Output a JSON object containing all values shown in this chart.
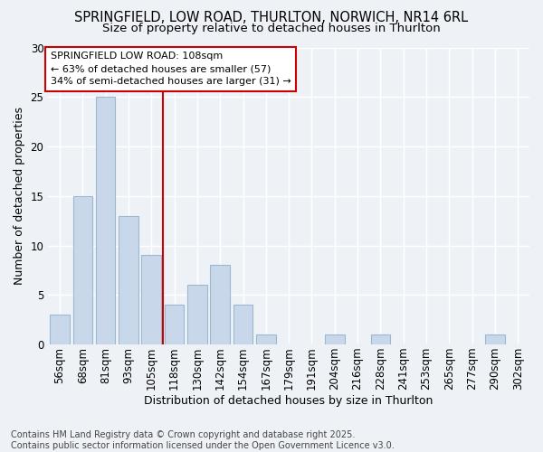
{
  "title1": "SPRINGFIELD, LOW ROAD, THURLTON, NORWICH, NR14 6RL",
  "title2": "Size of property relative to detached houses in Thurlton",
  "xlabel": "Distribution of detached houses by size in Thurlton",
  "ylabel": "Number of detached properties",
  "categories": [
    "56sqm",
    "68sqm",
    "81sqm",
    "93sqm",
    "105sqm",
    "118sqm",
    "130sqm",
    "142sqm",
    "154sqm",
    "167sqm",
    "179sqm",
    "191sqm",
    "204sqm",
    "216sqm",
    "228sqm",
    "241sqm",
    "253sqm",
    "265sqm",
    "277sqm",
    "290sqm",
    "302sqm"
  ],
  "values": [
    3,
    15,
    25,
    13,
    9,
    4,
    6,
    8,
    4,
    1,
    0,
    0,
    1,
    0,
    1,
    0,
    0,
    0,
    0,
    1,
    0
  ],
  "bar_color": "#c8d8ea",
  "bar_edge_color": "#9ab8d0",
  "vline_x_index": 4,
  "vline_color": "#cc0000",
  "ylim": [
    0,
    30
  ],
  "yticks": [
    0,
    5,
    10,
    15,
    20,
    25,
    30
  ],
  "annotation_title": "SPRINGFIELD LOW ROAD: 108sqm",
  "annotation_line1": "← 63% of detached houses are smaller (57)",
  "annotation_line2": "34% of semi-detached houses are larger (31) →",
  "annotation_box_color": "#ffffff",
  "annotation_box_edge": "#cc0000",
  "footer": "Contains HM Land Registry data © Crown copyright and database right 2025.\nContains public sector information licensed under the Open Government Licence v3.0.",
  "bg_color": "#eef2f7",
  "grid_color": "#ffffff",
  "title_fontsize": 10.5,
  "subtitle_fontsize": 9.5,
  "ylabel_fontsize": 9,
  "xlabel_fontsize": 9,
  "tick_fontsize": 8.5,
  "annot_fontsize": 8,
  "footer_fontsize": 7
}
